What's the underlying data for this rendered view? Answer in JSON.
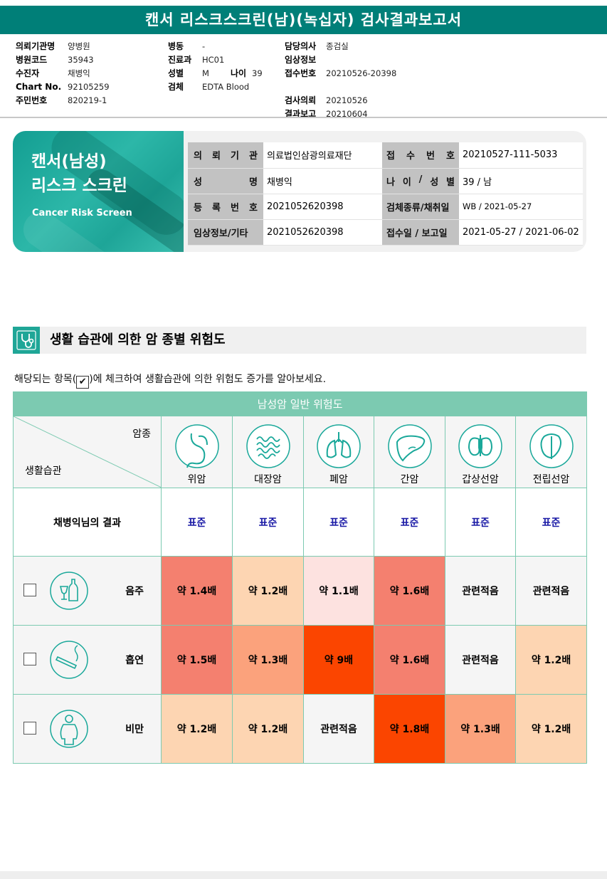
{
  "title": "캔서 리스크스크린(남)(녹십자) 검사결과보고서",
  "header": {
    "col1": [
      {
        "k": "의뢰기관명",
        "v": "양병원"
      },
      {
        "k": "병원코드",
        "v": "35943"
      },
      {
        "k": "수진자",
        "v": "채병익"
      },
      {
        "k": "Chart No.",
        "v": "92105259"
      },
      {
        "k": "주민번호",
        "v": "820219-1"
      }
    ],
    "col2": [
      {
        "k": "병동",
        "v": "-"
      },
      {
        "k": "진료과",
        "v": "HC01"
      },
      {
        "k": "성별",
        "v": "M",
        "k2": "나이",
        "v2": "39"
      },
      {
        "k": "검체",
        "v": "EDTA Blood"
      }
    ],
    "col3": [
      {
        "k": "담당의사",
        "v": "종검실"
      },
      {
        "k": "임상정보",
        "v": ""
      },
      {
        "k": "접수번호",
        "v": "20210526-20398"
      },
      {
        "k": "",
        "v": ""
      },
      {
        "k": "검사의뢰",
        "v": "20210526"
      },
      {
        "k": "결과보고",
        "v": "20210604"
      }
    ]
  },
  "banner": {
    "line1": "캔서(남성)",
    "line2": "리스크 스크린",
    "sub": "Cancer Risk Screen"
  },
  "info": {
    "rows": [
      {
        "l1": "의뢰기관",
        "v1": "의료법인삼광의료재단",
        "l2": "접수번호",
        "v2": "20210527-111-5033"
      },
      {
        "l1": "성명",
        "v1": "채병익",
        "l2": "나이/성별",
        "v2": "39 / 남"
      },
      {
        "l1": "등록번호",
        "v1": "2021052620398",
        "l2": "검체종류/채취일",
        "v2": "WB / 2021-05-27"
      },
      {
        "l1": "임상정보/기타",
        "v1": "2021052620398",
        "l2": "접수일 / 보고일",
        "v2": "2021-05-27 / 2021-06-02"
      }
    ]
  },
  "section": {
    "title": "생활 습관에 의한 암 종별 위험도"
  },
  "instruction": {
    "before": "해당되는 항목(",
    "check": "✔",
    "after": ")에 체크하여 생활습관에 의한 위험도 증가를 알아보세요."
  },
  "table": {
    "caption": "남성암 일반 위험도",
    "corner_top": "암종",
    "corner_bottom": "생활습관",
    "cancers": [
      "위암",
      "대장암",
      "폐암",
      "간암",
      "갑상선암",
      "전립선암"
    ],
    "result_label": "채병익님의 결과",
    "results": [
      "표준",
      "표준",
      "표준",
      "표준",
      "표준",
      "표준"
    ],
    "habits": [
      {
        "name": "음주",
        "icon": "alcohol-icon",
        "values": [
          "약 1.4배",
          "약 1.2배",
          "약 1.1배",
          "약 1.6배",
          "관련적음",
          "관련적음"
        ],
        "colors": [
          "#f4806f",
          "#fdd5b2",
          "#fde2e0",
          "#f4806f",
          "#f5f5f5",
          "#f5f5f5"
        ]
      },
      {
        "name": "흡연",
        "icon": "smoking-icon",
        "values": [
          "약 1.5배",
          "약 1.3배",
          "약 9배",
          "약 1.6배",
          "관련적음",
          "약 1.2배"
        ],
        "colors": [
          "#f4806f",
          "#fba27c",
          "#fb4500",
          "#f4806f",
          "#f5f5f5",
          "#fdd5b2"
        ]
      },
      {
        "name": "비만",
        "icon": "obesity-icon",
        "values": [
          "약 1.2배",
          "약 1.2배",
          "관련적음",
          "약 1.8배",
          "약 1.3배",
          "약 1.2배"
        ],
        "colors": [
          "#fdd5b2",
          "#fdd5b2",
          "#f5f5f5",
          "#fb4500",
          "#fba27c",
          "#fdd5b2"
        ]
      }
    ]
  }
}
